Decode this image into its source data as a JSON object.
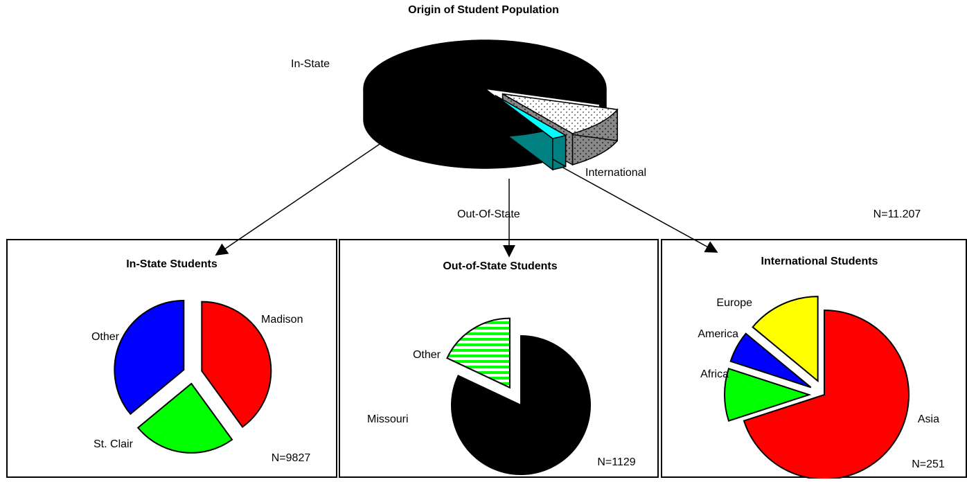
{
  "chart_data": [
    {
      "type": "pie3d",
      "title": "Origin of Student Population",
      "categories": [
        "In-State",
        "Out-Of-State",
        "International"
      ],
      "values": [
        88,
        10,
        2
      ],
      "colors": [
        "#000000",
        "#ffffff",
        "#00ffff"
      ],
      "patterns": [
        null,
        "dots",
        null
      ],
      "note": "N=11.207"
    },
    {
      "type": "pie",
      "title": "In-State Students",
      "categories": [
        "Madison",
        "St. Clair",
        "Other"
      ],
      "values": [
        40,
        24,
        36
      ],
      "colors": [
        "#ff0000",
        "#00ff00",
        "#0000ff"
      ],
      "note": "N=9827"
    },
    {
      "type": "pie",
      "title": "Out-of-State Students",
      "categories": [
        "Missouri",
        "Other"
      ],
      "values": [
        82,
        18
      ],
      "colors": [
        "#000000",
        "#00ff00"
      ],
      "patterns": [
        null,
        "stripes"
      ],
      "note": "N=1129"
    },
    {
      "type": "pie",
      "title": "International Students",
      "categories": [
        "Asia",
        "Africa",
        "America",
        "Europe"
      ],
      "values": [
        70,
        10,
        6,
        14
      ],
      "colors": [
        "#ff0000",
        "#00ff00",
        "#0000ff",
        "#ffff00"
      ],
      "note": "N=251"
    }
  ]
}
